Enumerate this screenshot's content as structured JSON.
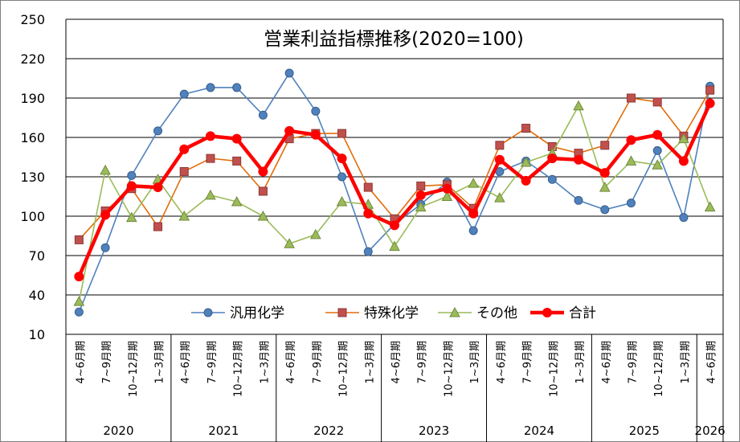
{
  "chart_data": {
    "type": "line",
    "title": "営業利益指標推移(2020=100)",
    "ylim": [
      10,
      250
    ],
    "yticks": [
      10,
      40,
      70,
      100,
      130,
      160,
      190,
      220,
      250
    ],
    "grid": true,
    "legend_position": "bottom-center",
    "categories": [
      "4~6月期",
      "7~9月期",
      "10~12月期",
      "1~3月期",
      "4~6月期",
      "7~9月期",
      "10~12月期",
      "1~3月期",
      "4~6月期",
      "7~9月期",
      "10~12月期",
      "1~3月期",
      "4~6月期",
      "7~9月期",
      "10~12月期",
      "1~3月期",
      "4~6月期",
      "7~9月期",
      "10~12月期",
      "1~3月期",
      "4~6月期",
      "7~9月期",
      "10~12月期",
      "1~3月期",
      "4~6月期"
    ],
    "year_groups": [
      {
        "label": "2020",
        "start": 0,
        "count": 4
      },
      {
        "label": "2021",
        "start": 4,
        "count": 4
      },
      {
        "label": "2022",
        "start": 8,
        "count": 4
      },
      {
        "label": "2023",
        "start": 12,
        "count": 4
      },
      {
        "label": "2024",
        "start": 16,
        "count": 4
      },
      {
        "label": "2025",
        "start": 20,
        "count": 4
      },
      {
        "label": "2026",
        "start": 24,
        "count": 1
      }
    ],
    "series": [
      {
        "name": "汎用化学",
        "color": "#4F81BD",
        "marker": "circle",
        "values": [
          27,
          76,
          131,
          165,
          193,
          198,
          198,
          177,
          209,
          180,
          130,
          73,
          94,
          109,
          126,
          89,
          134,
          142,
          128,
          112,
          105,
          110,
          150,
          99,
          199
        ]
      },
      {
        "name": "特殊化学",
        "color": "#C0504D",
        "line_color": "#E36C09",
        "marker": "square",
        "values": [
          82,
          104,
          121,
          92,
          134,
          144,
          142,
          119,
          159,
          163,
          163,
          122,
          98,
          123,
          124,
          106,
          154,
          167,
          153,
          148,
          154,
          190,
          187,
          161,
          196
        ]
      },
      {
        "name": "その他",
        "color": "#9BBB59",
        "marker": "triangle",
        "values": [
          35,
          135,
          99,
          128,
          100,
          116,
          111,
          100,
          79,
          86,
          111,
          109,
          77,
          107,
          115,
          125,
          114,
          141,
          148,
          184,
          122,
          142,
          139,
          159,
          107
        ]
      },
      {
        "name": "合計",
        "color": "#FF0000",
        "marker": "circle",
        "bold": true,
        "values": [
          54,
          101,
          123,
          122,
          151,
          161,
          159,
          134,
          165,
          162,
          144,
          102,
          93,
          116,
          121,
          102,
          143,
          127,
          144,
          143,
          133,
          158,
          162,
          142,
          186
        ]
      }
    ]
  }
}
